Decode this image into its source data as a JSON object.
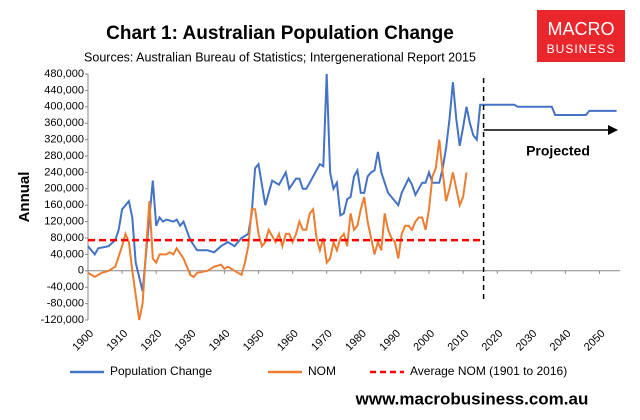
{
  "chart_data": {
    "type": "line",
    "title": "Chart 1: Australian Population Change",
    "subtitle": "Sources: Australian Bureau of Statistics; Intergenerational Report 2015",
    "y_label": "Annual",
    "annotation": "Projected",
    "vline_x": 2016,
    "xlim": [
      1900,
      2056
    ],
    "xticks": [
      1900,
      1910,
      1920,
      1930,
      1940,
      1950,
      1960,
      1970,
      1980,
      1990,
      2000,
      2010,
      2020,
      2030,
      2040,
      2050
    ],
    "ylim": [
      -120000,
      480000
    ],
    "yticks": [
      {
        "value": -120000,
        "label": "-120,000"
      },
      {
        "value": -80000,
        "label": "-80,000"
      },
      {
        "value": -40000,
        "label": "-40,000"
      },
      0,
      {
        "value": 40000,
        "label": "40,000"
      },
      {
        "value": 80000,
        "label": "80,000"
      },
      {
        "value": 120000,
        "label": "120,000"
      },
      {
        "value": 160000,
        "label": "160,000"
      },
      {
        "value": 200000,
        "label": "200,000"
      },
      {
        "value": 240000,
        "label": "240,000"
      },
      {
        "value": 280000,
        "label": "280,000"
      },
      {
        "value": 320000,
        "label": "320,000"
      },
      {
        "value": 360000,
        "label": "360,000"
      },
      {
        "value": 400000,
        "label": "400,000"
      },
      {
        "value": 440000,
        "label": "440,000"
      },
      {
        "value": 480000,
        "label": "480,000"
      }
    ],
    "grid": false,
    "legend": "bottom",
    "series": [
      {
        "name": "Population Change",
        "color": "#4472c4",
        "dash": false,
        "x": [
          1900,
          1902,
          1903,
          1906,
          1908,
          1909,
          1910,
          1912,
          1913,
          1914,
          1916,
          1917,
          1919,
          1920,
          1921,
          1922,
          1923,
          1925,
          1926,
          1927,
          1928,
          1930,
          1932,
          1935,
          1937,
          1939,
          1941,
          1942,
          1943,
          1945,
          1947,
          1948,
          1949,
          1950,
          1951,
          1952,
          1954,
          1956,
          1958,
          1959,
          1961,
          1962,
          1963,
          1964,
          1966,
          1968,
          1969,
          1970,
          1971,
          1972,
          1973,
          1974,
          1975,
          1976,
          1977,
          1978,
          1979,
          1980,
          1981,
          1982,
          1983,
          1984,
          1985,
          1986,
          1987,
          1988,
          1990,
          1991,
          1992,
          1994,
          1995,
          1996,
          1997,
          1998,
          1999,
          2000,
          2001,
          2002,
          2003,
          2004,
          2005,
          2006,
          2007,
          2008,
          2009,
          2010,
          2011,
          2012,
          2013,
          2014,
          2015,
          2025,
          2026,
          2036,
          2037,
          2046,
          2047,
          2055
        ],
        "values": [
          60000,
          40000,
          55000,
          60000,
          75000,
          100000,
          150000,
          170000,
          130000,
          20000,
          -50000,
          40000,
          220000,
          110000,
          130000,
          120000,
          125000,
          120000,
          125000,
          110000,
          120000,
          75000,
          50000,
          50000,
          45000,
          60000,
          70000,
          65000,
          60000,
          80000,
          90000,
          140000,
          250000,
          260000,
          210000,
          160000,
          220000,
          210000,
          240000,
          200000,
          225000,
          225000,
          200000,
          200000,
          230000,
          260000,
          255000,
          480000,
          240000,
          200000,
          215000,
          135000,
          140000,
          175000,
          180000,
          230000,
          245000,
          190000,
          190000,
          230000,
          240000,
          245000,
          290000,
          240000,
          215000,
          190000,
          170000,
          160000,
          190000,
          225000,
          210000,
          185000,
          200000,
          215000,
          215000,
          240000,
          215000,
          215000,
          215000,
          250000,
          300000,
          370000,
          460000,
          370000,
          305000,
          350000,
          400000,
          360000,
          330000,
          320000,
          405000,
          405000,
          400000,
          400000,
          380000,
          380000,
          390000,
          390000
        ]
      },
      {
        "name": "NOM",
        "color": "#ed7d31",
        "dash": false,
        "x": [
          1900,
          1902,
          1904,
          1906,
          1908,
          1910,
          1911,
          1912,
          1913,
          1915,
          1916,
          1917,
          1918,
          1919,
          1920,
          1921,
          1923,
          1924,
          1925,
          1926,
          1928,
          1930,
          1931,
          1932,
          1935,
          1937,
          1939,
          1940,
          1941,
          1943,
          1945,
          1946,
          1947,
          1948,
          1949,
          1950,
          1951,
          1952,
          1953,
          1955,
          1956,
          1957,
          1958,
          1959,
          1960,
          1961,
          1962,
          1963,
          1964,
          1965,
          1966,
          1967,
          1968,
          1969,
          1970,
          1971,
          1972,
          1973,
          1974,
          1975,
          1976,
          1977,
          1978,
          1979,
          1980,
          1981,
          1982,
          1983,
          1984,
          1985,
          1986,
          1987,
          1988,
          1989,
          1990,
          1991,
          1992,
          1993,
          1994,
          1995,
          1996,
          1997,
          1998,
          1999,
          2000,
          2001,
          2002,
          2003,
          2004,
          2005,
          2006,
          2007,
          2008,
          2009,
          2010,
          2011
        ],
        "values": [
          -5000,
          -15000,
          -5000,
          0,
          10000,
          60000,
          90000,
          70000,
          0,
          -120000,
          -80000,
          50000,
          170000,
          30000,
          20000,
          40000,
          40000,
          45000,
          40000,
          55000,
          30000,
          -10000,
          -15000,
          -5000,
          0,
          10000,
          15000,
          5000,
          10000,
          0,
          -10000,
          20000,
          60000,
          150000,
          150000,
          90000,
          60000,
          70000,
          100000,
          70000,
          90000,
          60000,
          90000,
          90000,
          70000,
          90000,
          120000,
          100000,
          100000,
          140000,
          150000,
          80000,
          50000,
          80000,
          20000,
          30000,
          70000,
          50000,
          80000,
          90000,
          60000,
          140000,
          100000,
          110000,
          150000,
          180000,
          120000,
          80000,
          40000,
          70000,
          50000,
          140000,
          100000,
          80000,
          70000,
          30000,
          90000,
          110000,
          110000,
          100000,
          120000,
          130000,
          130000,
          100000,
          150000,
          230000,
          250000,
          320000,
          240000,
          170000,
          200000,
          240000,
          200000,
          160000,
          180000,
          240000
        ]
      },
      {
        "name": "Average NOM (1901 to 2016)",
        "color": "#ff0000",
        "dash": true,
        "x": [
          1900,
          2016
        ],
        "values": [
          75000,
          75000
        ]
      }
    ]
  },
  "logo": {
    "line1": "MACRO",
    "line2": "BUSINESS"
  },
  "footer": "www.macrobusiness.com.au"
}
